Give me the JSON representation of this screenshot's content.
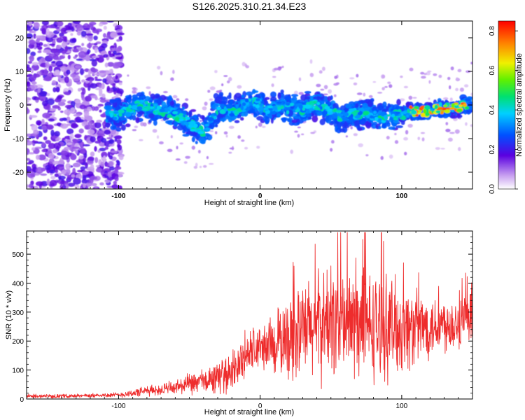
{
  "title": "S126.2025.310.21.34.E23",
  "chart_data": [
    {
      "type": "heatmap",
      "xlabel": "Height of straight line (km)",
      "ylabel": "Frequency (Hz)",
      "xlim": [
        -165,
        150
      ],
      "ylim": [
        -25,
        25
      ],
      "xticks": [
        -100,
        0,
        100
      ],
      "xtick_labels": [
        "-100",
        "0",
        "100"
      ],
      "yticks": [
        20,
        10,
        0,
        -10,
        -20
      ],
      "ytick_labels": [
        "20",
        "10",
        "0",
        "-10",
        "-20"
      ],
      "ridge": {
        "x": [
          -105,
          -95,
          -85,
          -75,
          -65,
          -55,
          -45,
          -40,
          -35,
          -30,
          -25,
          -20,
          -15,
          -10,
          -5,
          0,
          5,
          10,
          15,
          20,
          25,
          30,
          35,
          40,
          45,
          50,
          55,
          60,
          65,
          70,
          75,
          80,
          85,
          90,
          95,
          100,
          105,
          110,
          115,
          120,
          125,
          130,
          135,
          140,
          145,
          150
        ],
        "y": [
          -3,
          -2,
          0,
          -1,
          -2,
          -4,
          -7,
          -8,
          -5,
          -1,
          -1,
          -2,
          -1,
          0,
          1,
          0,
          -2,
          -1,
          0,
          -1,
          -1,
          -2,
          0,
          0,
          -1,
          -2,
          -3,
          -4,
          -2,
          -3,
          -2,
          -3,
          -4,
          -3,
          -3,
          -3,
          -2,
          -2,
          -2,
          -2,
          -1,
          -1,
          -1,
          -1,
          0,
          0
        ]
      },
      "colorbar": {
        "label": "Normalized spectral amplitude",
        "range": [
          0,
          0.85
        ],
        "ticks": [
          0.0,
          0.2,
          0.4,
          0.6,
          0.8
        ],
        "tick_labels": [
          "0.0",
          "0.2",
          "0.4",
          "0.6",
          "0.8"
        ]
      }
    },
    {
      "type": "line",
      "xlabel": "Height of straight line (km)",
      "ylabel": "SNR (10 * v/v)",
      "xlim": [
        -165,
        150
      ],
      "ylim": [
        0,
        580
      ],
      "xticks": [
        -100,
        0,
        100
      ],
      "xtick_labels": [
        "-100",
        "0",
        "100"
      ],
      "yticks": [
        0,
        100,
        200,
        300,
        400,
        500
      ],
      "ytick_labels": [
        "0",
        "100",
        "200",
        "300",
        "400",
        "500"
      ],
      "color": "#ee2c2c",
      "envelope": {
        "x": [
          -165,
          -140,
          -120,
          -100,
          -90,
          -80,
          -70,
          -60,
          -50,
          -40,
          -30,
          -20,
          -15,
          -10,
          -5,
          0,
          10,
          20,
          30,
          40,
          50,
          60,
          70,
          80,
          90,
          100,
          110,
          120,
          130,
          140,
          150
        ],
        "mean": [
          10,
          10,
          12,
          14,
          20,
          28,
          32,
          40,
          50,
          60,
          75,
          95,
          120,
          150,
          170,
          175,
          190,
          210,
          230,
          250,
          270,
          265,
          255,
          250,
          250,
          245,
          245,
          255,
          260,
          265,
          265
        ],
        "spread": [
          6,
          6,
          6,
          8,
          12,
          16,
          18,
          24,
          32,
          40,
          50,
          60,
          70,
          80,
          80,
          70,
          100,
          130,
          150,
          170,
          180,
          180,
          175,
          170,
          160,
          150,
          120,
          100,
          90,
          90,
          90
        ]
      },
      "peak_max": 575
    }
  ]
}
